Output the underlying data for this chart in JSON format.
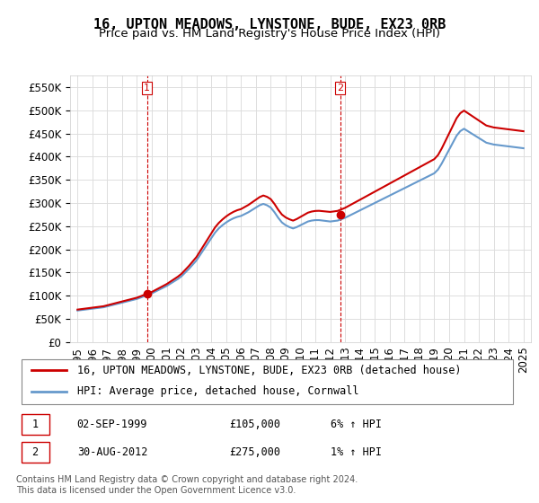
{
  "title": "16, UPTON MEADOWS, LYNSTONE, BUDE, EX23 0RB",
  "subtitle": "Price paid vs. HM Land Registry's House Price Index (HPI)",
  "ylabel_ticks": [
    "£0",
    "£50K",
    "£100K",
    "£150K",
    "£200K",
    "£250K",
    "£300K",
    "£350K",
    "£400K",
    "£450K",
    "£500K",
    "£550K"
  ],
  "ytick_values": [
    0,
    50000,
    100000,
    150000,
    200000,
    250000,
    300000,
    350000,
    400000,
    450000,
    500000,
    550000
  ],
  "ylim": [
    0,
    575000
  ],
  "xlim_start": 1994.5,
  "xlim_end": 2025.5,
  "xticks": [
    1995,
    1996,
    1997,
    1998,
    1999,
    2000,
    2001,
    2002,
    2003,
    2004,
    2005,
    2006,
    2007,
    2008,
    2009,
    2010,
    2011,
    2012,
    2013,
    2014,
    2015,
    2016,
    2017,
    2018,
    2019,
    2020,
    2021,
    2022,
    2023,
    2024,
    2025
  ],
  "sale1_x": 1999.67,
  "sale1_y": 105000,
  "sale1_label": "1",
  "sale2_x": 2012.66,
  "sale2_y": 275000,
  "sale2_label": "2",
  "vline1_x": 1999.67,
  "vline2_x": 2012.66,
  "red_color": "#cc0000",
  "blue_color": "#6699cc",
  "background_color": "#ffffff",
  "grid_color": "#dddddd",
  "legend1_label": "16, UPTON MEADOWS, LYNSTONE, BUDE, EX23 0RB (detached house)",
  "legend2_label": "HPI: Average price, detached house, Cornwall",
  "table_entries": [
    {
      "num": "1",
      "date": "02-SEP-1999",
      "price": "£105,000",
      "hpi": "6% ↑ HPI"
    },
    {
      "num": "2",
      "date": "30-AUG-2012",
      "price": "£275,000",
      "hpi": "1% ↑ HPI"
    }
  ],
  "footer": "Contains HM Land Registry data © Crown copyright and database right 2024.\nThis data is licensed under the Open Government Licence v3.0.",
  "title_fontsize": 11,
  "subtitle_fontsize": 9.5,
  "tick_fontsize": 8.5,
  "legend_fontsize": 8.5,
  "table_fontsize": 8.5,
  "footer_fontsize": 7
}
